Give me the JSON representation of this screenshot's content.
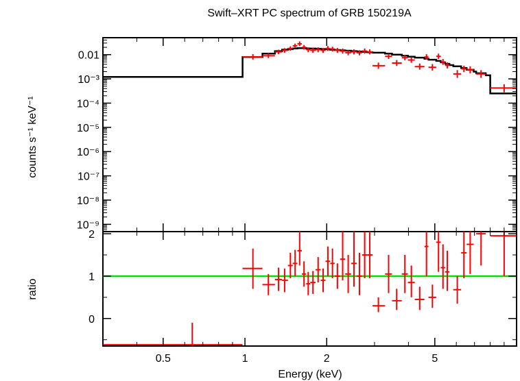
{
  "chart_data": [
    {
      "type": "scatter",
      "panel": "spectrum",
      "title": "Swift–XRT PC spectrum of GRB 150219A",
      "xlabel": "Energy (keV)",
      "ylabel": "counts s⁻¹ keV⁻¹",
      "xscale": "log",
      "yscale": "log",
      "xlim": [
        0.3,
        10
      ],
      "ylim": [
        5e-10,
        0.05
      ],
      "y_ticks": [
        {
          "value": 0.01,
          "label": "0.01"
        },
        {
          "value": 0.001,
          "label": "10⁻³"
        },
        {
          "value": 0.0001,
          "label": "10⁻⁴"
        },
        {
          "value": 1e-05,
          "label": "10⁻⁵"
        },
        {
          "value": 1e-06,
          "label": "10⁻⁶"
        },
        {
          "value": 1e-07,
          "label": "10⁻⁷"
        },
        {
          "value": 1e-08,
          "label": "10⁻⁸"
        },
        {
          "value": 1e-09,
          "label": "10⁻⁹"
        }
      ],
      "series": [
        {
          "name": "data",
          "color": "#ff0000",
          "points": [
            {
              "x": 1.07,
              "xlo": 0.98,
              "xhi": 1.16,
              "y": 0.008,
              "ylo": 0.0062,
              "yhi": 0.0105
            },
            {
              "x": 1.22,
              "xlo": 1.16,
              "xhi": 1.29,
              "y": 0.009,
              "ylo": 0.0072,
              "yhi": 0.0115
            },
            {
              "x": 1.33,
              "xlo": 1.29,
              "xhi": 1.37,
              "y": 0.013,
              "ylo": 0.0105,
              "yhi": 0.016
            },
            {
              "x": 1.4,
              "xlo": 1.37,
              "xhi": 1.44,
              "y": 0.015,
              "ylo": 0.012,
              "yhi": 0.0185
            },
            {
              "x": 1.47,
              "xlo": 1.44,
              "xhi": 1.5,
              "y": 0.018,
              "ylo": 0.0145,
              "yhi": 0.022
            },
            {
              "x": 1.53,
              "xlo": 1.5,
              "xhi": 1.56,
              "y": 0.023,
              "ylo": 0.0185,
              "yhi": 0.0285
            },
            {
              "x": 1.59,
              "xlo": 1.56,
              "xhi": 1.62,
              "y": 0.028,
              "ylo": 0.0225,
              "yhi": 0.035
            },
            {
              "x": 1.65,
              "xlo": 1.62,
              "xhi": 1.68,
              "y": 0.02,
              "ylo": 0.016,
              "yhi": 0.025
            },
            {
              "x": 1.71,
              "xlo": 1.68,
              "xhi": 1.74,
              "y": 0.016,
              "ylo": 0.0125,
              "yhi": 0.02
            },
            {
              "x": 1.78,
              "xlo": 1.74,
              "xhi": 1.82,
              "y": 0.015,
              "ylo": 0.0118,
              "yhi": 0.019
            },
            {
              "x": 1.86,
              "xlo": 1.82,
              "xhi": 1.9,
              "y": 0.016,
              "ylo": 0.0125,
              "yhi": 0.02
            },
            {
              "x": 1.94,
              "xlo": 1.9,
              "xhi": 1.98,
              "y": 0.015,
              "ylo": 0.0118,
              "yhi": 0.019
            },
            {
              "x": 2.02,
              "xlo": 1.98,
              "xhi": 2.06,
              "y": 0.018,
              "ylo": 0.0142,
              "yhi": 0.0225
            },
            {
              "x": 2.1,
              "xlo": 2.06,
              "xhi": 2.14,
              "y": 0.017,
              "ylo": 0.0134,
              "yhi": 0.0212
            },
            {
              "x": 2.19,
              "xlo": 2.14,
              "xhi": 2.24,
              "y": 0.015,
              "ylo": 0.0118,
              "yhi": 0.019
            },
            {
              "x": 2.29,
              "xlo": 2.24,
              "xhi": 2.34,
              "y": 0.014,
              "ylo": 0.011,
              "yhi": 0.0178
            },
            {
              "x": 2.4,
              "xlo": 2.34,
              "xhi": 2.46,
              "y": 0.012,
              "ylo": 0.0094,
              "yhi": 0.0152
            },
            {
              "x": 2.52,
              "xlo": 2.46,
              "xhi": 2.58,
              "y": 0.013,
              "ylo": 0.0102,
              "yhi": 0.0165
            },
            {
              "x": 2.64,
              "xlo": 2.58,
              "xhi": 2.7,
              "y": 0.012,
              "ylo": 0.0094,
              "yhi": 0.0152
            },
            {
              "x": 2.76,
              "xlo": 2.7,
              "xhi": 2.82,
              "y": 0.014,
              "ylo": 0.011,
              "yhi": 0.0178
            },
            {
              "x": 2.88,
              "xlo": 2.82,
              "xhi": 2.95,
              "y": 0.013,
              "ylo": 0.0102,
              "yhi": 0.0165
            },
            {
              "x": 3.1,
              "xlo": 2.95,
              "xhi": 3.28,
              "y": 0.0035,
              "ylo": 0.0026,
              "yhi": 0.0047
            },
            {
              "x": 3.38,
              "xlo": 3.28,
              "xhi": 3.48,
              "y": 0.0085,
              "ylo": 0.0066,
              "yhi": 0.011
            },
            {
              "x": 3.62,
              "xlo": 3.48,
              "xhi": 3.78,
              "y": 0.0045,
              "ylo": 0.0034,
              "yhi": 0.006
            },
            {
              "x": 3.88,
              "xlo": 3.78,
              "xhi": 3.98,
              "y": 0.0075,
              "ylo": 0.0058,
              "yhi": 0.0097
            },
            {
              "x": 4.1,
              "xlo": 3.98,
              "xhi": 4.22,
              "y": 0.006,
              "ylo": 0.0046,
              "yhi": 0.0078
            },
            {
              "x": 4.4,
              "xlo": 4.22,
              "xhi": 4.58,
              "y": 0.0032,
              "ylo": 0.0024,
              "yhi": 0.0043
            },
            {
              "x": 4.66,
              "xlo": 4.58,
              "xhi": 4.74,
              "y": 0.008,
              "ylo": 0.0062,
              "yhi": 0.0104
            },
            {
              "x": 4.9,
              "xlo": 4.74,
              "xhi": 5.06,
              "y": 0.003,
              "ylo": 0.0022,
              "yhi": 0.0041
            },
            {
              "x": 5.16,
              "xlo": 5.06,
              "xhi": 5.26,
              "y": 0.0085,
              "ylo": 0.0066,
              "yhi": 0.011
            },
            {
              "x": 5.36,
              "xlo": 5.26,
              "xhi": 5.46,
              "y": 0.005,
              "ylo": 0.0038,
              "yhi": 0.0066
            },
            {
              "x": 5.56,
              "xlo": 5.46,
              "xhi": 5.66,
              "y": 0.0036,
              "ylo": 0.0027,
              "yhi": 0.0048
            },
            {
              "x": 6.05,
              "xlo": 5.85,
              "xhi": 6.25,
              "y": 0.0016,
              "ylo": 0.0011,
              "yhi": 0.0023
            },
            {
              "x": 6.4,
              "xlo": 6.25,
              "xhi": 6.55,
              "y": 0.0026,
              "ylo": 0.0019,
              "yhi": 0.0035
            },
            {
              "x": 6.75,
              "xlo": 6.55,
              "xhi": 6.95,
              "y": 0.0024,
              "ylo": 0.0017,
              "yhi": 0.0033
            },
            {
              "x": 7.4,
              "xlo": 7.1,
              "xhi": 7.7,
              "y": 0.0016,
              "ylo": 0.0011,
              "yhi": 0.0023
            },
            {
              "x": 9.0,
              "xlo": 8.0,
              "xhi": 10.0,
              "y": 0.00042,
              "ylo": 0.00028,
              "yhi": 0.0006
            }
          ]
        },
        {
          "name": "model",
          "color": "#000000",
          "type": "step",
          "edges": [
            0.3,
            0.98,
            1.16,
            1.29,
            1.37,
            1.44,
            1.5,
            1.56,
            1.62,
            1.68,
            1.74,
            1.82,
            1.9,
            1.98,
            2.06,
            2.14,
            2.24,
            2.34,
            2.46,
            2.58,
            2.7,
            2.82,
            2.95,
            3.28,
            3.48,
            3.78,
            3.98,
            4.22,
            4.58,
            4.74,
            5.06,
            5.26,
            5.46,
            5.66,
            5.85,
            6.25,
            6.55,
            6.95,
            7.1,
            7.7,
            8.0,
            10.0
          ],
          "values": [
            0.0012,
            0.008,
            0.011,
            0.014,
            0.016,
            0.017,
            0.018,
            0.0185,
            0.0185,
            0.018,
            0.0178,
            0.0175,
            0.017,
            0.0165,
            0.016,
            0.0155,
            0.015,
            0.0145,
            0.014,
            0.0135,
            0.013,
            0.0125,
            0.012,
            0.011,
            0.01,
            0.009,
            0.0082,
            0.0075,
            0.0068,
            0.0062,
            0.0055,
            0.0048,
            0.0042,
            0.0037,
            0.0033,
            0.0028,
            0.0024,
            0.002,
            0.0017,
            0.0014,
            0.00025
          ]
        }
      ]
    },
    {
      "type": "scatter",
      "panel": "ratio",
      "xlabel": "Energy (keV)",
      "ylabel": "ratio",
      "xscale": "log",
      "xlim": [
        0.3,
        10
      ],
      "ylim": [
        -0.65,
        2.05
      ],
      "x_ticks": [
        {
          "value": 0.5,
          "label": "0.5"
        },
        {
          "value": 1,
          "label": "1"
        },
        {
          "value": 2,
          "label": "2"
        },
        {
          "value": 5,
          "label": "5"
        }
      ],
      "y_ticks": [
        {
          "value": 0,
          "label": "0"
        },
        {
          "value": 1,
          "label": "1"
        },
        {
          "value": 2,
          "label": "2"
        }
      ],
      "reference_line": {
        "y": 1,
        "color": "#00dd00"
      },
      "series": [
        {
          "name": "ratio",
          "color": "#ff0000",
          "points": [
            {
              "x": 0.64,
              "xlo": 0.3,
              "xhi": 0.98,
              "y": -0.62,
              "ylo": -0.65,
              "yhi": -0.1
            },
            {
              "x": 1.07,
              "xlo": 0.98,
              "xhi": 1.16,
              "y": 1.18,
              "ylo": 0.7,
              "yhi": 1.65
            },
            {
              "x": 1.22,
              "xlo": 1.16,
              "xhi": 1.29,
              "y": 0.8,
              "ylo": 0.55,
              "yhi": 1.05
            },
            {
              "x": 1.33,
              "xlo": 1.29,
              "xhi": 1.37,
              "y": 0.92,
              "ylo": 0.65,
              "yhi": 1.2
            },
            {
              "x": 1.4,
              "xlo": 1.37,
              "xhi": 1.44,
              "y": 0.9,
              "ylo": 0.62,
              "yhi": 1.18
            },
            {
              "x": 1.47,
              "xlo": 1.44,
              "xhi": 1.5,
              "y": 1.25,
              "ylo": 0.95,
              "yhi": 1.55
            },
            {
              "x": 1.53,
              "xlo": 1.5,
              "xhi": 1.56,
              "y": 1.3,
              "ylo": 1.0,
              "yhi": 1.62
            },
            {
              "x": 1.59,
              "xlo": 1.56,
              "xhi": 1.62,
              "y": 1.6,
              "ylo": 1.25,
              "yhi": 2.05
            },
            {
              "x": 1.65,
              "xlo": 1.62,
              "xhi": 1.68,
              "y": 1.05,
              "ylo": 0.75,
              "yhi": 1.35
            },
            {
              "x": 1.71,
              "xlo": 1.68,
              "xhi": 1.74,
              "y": 0.82,
              "ylo": 0.55,
              "yhi": 1.1
            },
            {
              "x": 1.78,
              "xlo": 1.74,
              "xhi": 1.82,
              "y": 0.85,
              "ylo": 0.58,
              "yhi": 1.12
            },
            {
              "x": 1.86,
              "xlo": 1.82,
              "xhi": 1.9,
              "y": 1.15,
              "ylo": 0.85,
              "yhi": 1.45
            },
            {
              "x": 1.94,
              "xlo": 1.9,
              "xhi": 1.98,
              "y": 0.9,
              "ylo": 0.62,
              "yhi": 1.18
            },
            {
              "x": 2.02,
              "xlo": 1.98,
              "xhi": 2.06,
              "y": 1.35,
              "ylo": 1.0,
              "yhi": 1.7
            },
            {
              "x": 2.1,
              "xlo": 2.06,
              "xhi": 2.14,
              "y": 1.3,
              "ylo": 0.95,
              "yhi": 1.65
            },
            {
              "x": 2.19,
              "xlo": 2.14,
              "xhi": 2.24,
              "y": 1.0,
              "ylo": 0.7,
              "yhi": 1.3
            },
            {
              "x": 2.29,
              "xlo": 2.24,
              "xhi": 2.34,
              "y": 1.4,
              "ylo": 0.9,
              "yhi": 2.05
            },
            {
              "x": 2.4,
              "xlo": 2.34,
              "xhi": 2.46,
              "y": 1.05,
              "ylo": 0.6,
              "yhi": 1.5
            },
            {
              "x": 2.52,
              "xlo": 2.46,
              "xhi": 2.58,
              "y": 1.3,
              "ylo": 0.75,
              "yhi": 2.05
            },
            {
              "x": 2.64,
              "xlo": 2.58,
              "xhi": 2.7,
              "y": 1.0,
              "ylo": 0.55,
              "yhi": 1.55
            },
            {
              "x": 2.76,
              "xlo": 2.7,
              "xhi": 2.82,
              "y": 1.5,
              "ylo": 0.95,
              "yhi": 2.05
            },
            {
              "x": 2.88,
              "xlo": 2.82,
              "xhi": 2.95,
              "y": 1.5,
              "ylo": 0.95,
              "yhi": 2.05
            },
            {
              "x": 3.1,
              "xlo": 2.95,
              "xhi": 3.28,
              "y": 0.3,
              "ylo": 0.15,
              "yhi": 0.5
            },
            {
              "x": 3.38,
              "xlo": 3.28,
              "xhi": 3.48,
              "y": 1.05,
              "ylo": 0.6,
              "yhi": 1.5
            },
            {
              "x": 3.62,
              "xlo": 3.48,
              "xhi": 3.78,
              "y": 0.42,
              "ylo": 0.2,
              "yhi": 0.7
            },
            {
              "x": 3.88,
              "xlo": 3.78,
              "xhi": 3.98,
              "y": 1.05,
              "ylo": 0.6,
              "yhi": 1.5
            },
            {
              "x": 4.1,
              "xlo": 3.98,
              "xhi": 4.22,
              "y": 0.85,
              "ylo": 0.5,
              "yhi": 1.25
            },
            {
              "x": 4.4,
              "xlo": 4.22,
              "xhi": 4.58,
              "y": 0.45,
              "ylo": 0.2,
              "yhi": 0.75
            },
            {
              "x": 4.66,
              "xlo": 4.58,
              "xhi": 4.74,
              "y": 1.7,
              "ylo": 1.0,
              "yhi": 2.05
            },
            {
              "x": 4.9,
              "xlo": 4.74,
              "xhi": 5.06,
              "y": 0.5,
              "ylo": 0.25,
              "yhi": 0.8
            },
            {
              "x": 5.16,
              "xlo": 5.06,
              "xhi": 5.26,
              "y": 1.8,
              "ylo": 1.1,
              "yhi": 2.05
            },
            {
              "x": 5.36,
              "xlo": 5.26,
              "xhi": 5.46,
              "y": 1.2,
              "ylo": 0.7,
              "yhi": 1.75
            },
            {
              "x": 5.56,
              "xlo": 5.46,
              "xhi": 5.66,
              "y": 1.1,
              "ylo": 0.65,
              "yhi": 1.6
            },
            {
              "x": 6.05,
              "xlo": 5.85,
              "xhi": 6.25,
              "y": 0.68,
              "ylo": 0.35,
              "yhi": 1.0
            },
            {
              "x": 6.4,
              "xlo": 6.25,
              "xhi": 6.55,
              "y": 1.55,
              "ylo": 0.95,
              "yhi": 2.05
            },
            {
              "x": 6.75,
              "xlo": 6.55,
              "xhi": 6.95,
              "y": 1.75,
              "ylo": 1.05,
              "yhi": 2.05
            },
            {
              "x": 7.4,
              "xlo": 7.1,
              "xhi": 7.7,
              "y": 2.0,
              "ylo": 1.25,
              "yhi": 2.05
            },
            {
              "x": 9.0,
              "xlo": 8.0,
              "xhi": 10.0,
              "y": 1.95,
              "ylo": 1.0,
              "yhi": 2.05
            }
          ]
        }
      ]
    }
  ]
}
